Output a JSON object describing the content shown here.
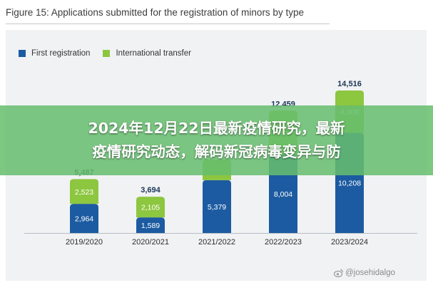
{
  "figure_title": "Figure 15: Applications submitted for the registration of minors by type",
  "banner_text": "2024年12月22日最新疫情研究，最新\n疫情研究动态，解码新冠病毒变异与防",
  "watermark": "@josehidalgo",
  "colors": {
    "first_registration": "#1c5ba1",
    "international_transfer": "#8dc63f",
    "total_label": "#1b3557",
    "banner": "#66be6e"
  },
  "chart_data": {
    "type": "bar",
    "stacked": true,
    "title": "Figure 15: Applications submitted for the registration of minors by type",
    "xlabel": "",
    "ylabel": "",
    "categories": [
      "2019/2020",
      "2020/2021",
      "2021/2022",
      "2022/2023",
      "2023/2024"
    ],
    "series": [
      {
        "name": "First registration",
        "values": [
          2964,
          1589,
          5379,
          8004,
          10208
        ]
      },
      {
        "name": "International transfer",
        "values": [
          2523,
          2105,
          2101,
          4455,
          4308
        ]
      }
    ],
    "totals": [
      5487,
      3694,
      7480,
      12459,
      14516
    ],
    "bar_labels": {
      "first": [
        "2,964",
        "1,589",
        "5,379",
        "8,004",
        "10,208"
      ],
      "transfer": [
        "2,523",
        "2,105",
        "",
        "",
        "4,308"
      ],
      "totals": [
        "5,487",
        "3,694",
        "",
        "12,459",
        "14,516"
      ]
    },
    "ylim": [
      0,
      14516
    ],
    "grid": false,
    "legend_position": "top-left"
  }
}
